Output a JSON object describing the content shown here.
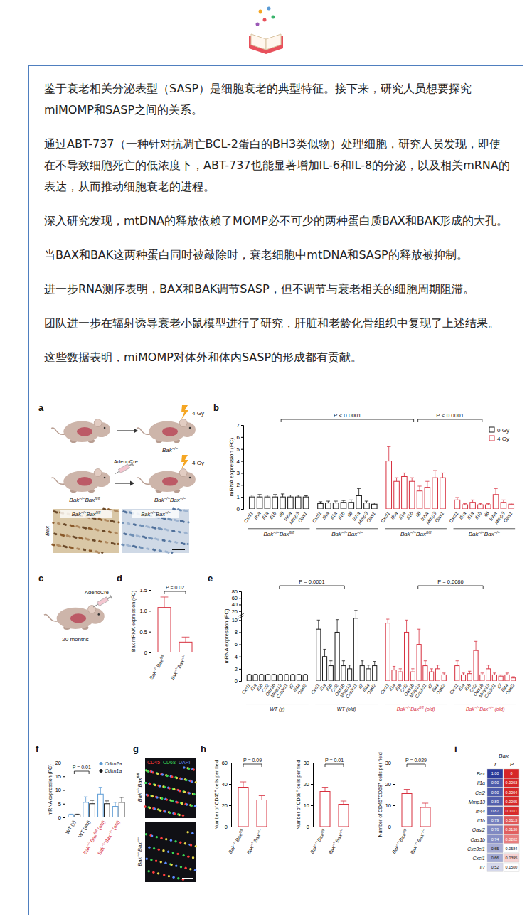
{
  "paragraphs": [
    "鉴于衰老相关分泌表型（SASP）是细胞衰老的典型特征。接下来，研究人员想要探究miMOMP和SASP之间的关系。",
    "通过ABT-737（一种针对抗凋亡BCL-2蛋白的BH3类似物）处理细胞，研究人员发现，即使在不导致细胞死亡的低浓度下，ABT-737也能显著增加IL-6和IL-8的分泌，以及相关mRNA的表达，从而推动细胞衰老的进程。",
    "深入研究发现，mtDNA的释放依赖了MOMP必不可少的两种蛋白质BAX和BAK形成的大孔。",
    "当BAX和BAK这两种蛋白同时被敲除时，衰老细胞中mtDNA和SASP的释放被抑制。",
    "进一步RNA测序表明，BAX和BAK调节SASP，但不调节与衰老相关的细胞周期阻滞。",
    "团队进一步在辐射诱导衰老小鼠模型进行了研究，肝脏和老龄化骨组织中复现了上述结果。",
    "这些数据表明，miMOMP对体外和体内SASP的形成都有贡献。"
  ],
  "diagrams": {
    "a": {
      "panel": "a",
      "dose_top": "4 Gy",
      "genotype_top": "Bak−/−",
      "injection": "AdenoCre",
      "genotype_start": "Bak−/−Baxfl/fl",
      "dose_bottom": "4 Gy",
      "genotype_end": "Bak−/−Bax−/−",
      "stain": "Bax",
      "image_left": "Bak−/−Baxfl/fl",
      "image_right": "Bak−/−Bax−/−"
    },
    "c": {
      "panel": "c",
      "injection": "AdenoCre",
      "age": "20 months"
    },
    "g": {
      "panel": "g",
      "channels": [
        {
          "name": "CD45",
          "color": "#ff3b3b"
        },
        {
          "name": "CD68",
          "color": "#39d353"
        },
        {
          "name": "DAPI",
          "color": "#5b8cff"
        }
      ],
      "rows": [
        "Bak−/−Baxfl/fl",
        "Bak−/−Bax−/−"
      ]
    }
  },
  "chart_data": [
    {
      "panel": "b",
      "type": "bar",
      "y_label": "mRNA expression (FC)",
      "ylim": [
        0,
        7
      ],
      "yticks": [
        0,
        1,
        2,
        3,
        4,
        5,
        6,
        7
      ],
      "categories": [
        "Cxcl1",
        "Ifna",
        "Il1a",
        "Il1b",
        "Il6",
        "Inha",
        "Mmp3",
        "Oas1"
      ],
      "series": [
        {
          "name": "0 Gy",
          "color": "#1a1a1a"
        },
        {
          "name": "4 Gy",
          "color": "#d7303f"
        }
      ],
      "legend": "top-right",
      "groups": [
        {
          "name": "Bak−/−Baxfl/fl",
          "series": 0,
          "values": [
            1.0,
            1.0,
            1.0,
            1.0,
            1.0,
            1.0,
            1.0,
            1.0
          ],
          "errors": [
            0.15,
            0.2,
            0.15,
            0.2,
            0.25,
            0.15,
            0.15,
            0.1
          ]
        },
        {
          "name": "Bak−/−Bax−/−",
          "series": 0,
          "values": [
            0.45,
            0.5,
            0.5,
            0.55,
            0.55,
            1.1,
            0.5,
            0.4
          ],
          "errors": [
            0.15,
            0.15,
            0.15,
            0.15,
            0.2,
            0.6,
            0.15,
            0.1
          ]
        },
        {
          "name": "Bak−/−Baxfl/fl",
          "series": 1,
          "values": [
            4.0,
            2.3,
            2.7,
            2.3,
            1.5,
            1.8,
            2.6,
            2.6
          ],
          "errors": [
            1.2,
            0.3,
            0.3,
            0.3,
            0.4,
            0.5,
            0.6,
            0.4
          ]
        },
        {
          "name": "Bak−/−Bax−/−",
          "series": 1,
          "values": [
            0.75,
            0.35,
            0.55,
            0.35,
            0.35,
            1.2,
            0.55,
            0.4
          ],
          "errors": [
            0.2,
            0.1,
            0.2,
            0.1,
            0.1,
            0.5,
            0.2,
            0.1
          ]
        }
      ],
      "comparisons": [
        {
          "groups": [
            0,
            2
          ],
          "label": "P < 0.0001"
        },
        {
          "groups": [
            2,
            3
          ],
          "label": "P < 0.0001"
        }
      ]
    },
    {
      "panel": "d",
      "type": "bar",
      "y_label": "Bax mRNA expression (FC)",
      "ylim": [
        0,
        1.5
      ],
      "yticks": [
        0,
        0.5,
        {
          "value": 1,
          "label": "1.0"
        },
        1.5
      ],
      "categories": [
        "Bak−/−Baxfl/fl",
        "Bak−/−Bax−/−"
      ],
      "values": [
        1.08,
        0.25
      ],
      "errors": [
        0.25,
        0.12
      ],
      "color": "#d7303f",
      "comparisons": [
        {
          "categories": [
            0,
            1
          ],
          "label": "P = 0.02"
        }
      ]
    },
    {
      "panel": "e",
      "type": "bar",
      "y_label": "mRNA expression (FC)",
      "ylim": [
        0,
        80
      ],
      "y_break": [
        10,
        20
      ],
      "yticks": [
        0,
        2,
        4,
        6,
        8,
        10,
        20,
        40,
        60,
        80
      ],
      "categories": [
        "Cxcl1",
        "Il1a",
        "Il1b",
        "Ccl2",
        "Oas1b",
        "Mmp13",
        "Cxc3cl1",
        "Il7",
        "Ifi44",
        "Oasl2"
      ],
      "groups": [
        {
          "name": "WT (y)",
          "color": "#1a1a1a",
          "values": [
            1.0,
            1.0,
            1.0,
            1.0,
            1.0,
            1.0,
            1.0,
            1.0,
            1.0,
            1.0
          ],
          "errors": [
            0.1,
            0.1,
            0.1,
            0.1,
            0.1,
            0.1,
            0.1,
            0.1,
            0.1,
            0.1
          ]
        },
        {
          "name": "WT (old)",
          "color": "#1a1a1a",
          "values": [
            8.5,
            4.0,
            2.5,
            8.0,
            2.5,
            2.0,
            12,
            2.5,
            2.0,
            2.5
          ],
          "errors": [
            1.5,
            1.2,
            0.8,
            2.5,
            0.8,
            0.6,
            10,
            0.8,
            0.6,
            0.7
          ]
        },
        {
          "name": "Bak−/−Baxfl/fl (old)",
          "color": "#d7303f",
          "values": [
            9.5,
            1.8,
            1.5,
            8.0,
            1.5,
            6.0,
            2.5,
            1.5,
            2.0,
            1.0
          ],
          "errors": [
            1.5,
            0.6,
            0.5,
            2.0,
            0.5,
            2.5,
            0.8,
            0.5,
            0.6,
            0.3
          ]
        },
        {
          "name": "Bak−/−Bax−/− (old)",
          "color": "#d7303f",
          "values": [
            2.5,
            1.0,
            1.2,
            5.0,
            1.0,
            2.0,
            1.0,
            0.8,
            1.0,
            0.5
          ],
          "errors": [
            0.8,
            0.3,
            0.4,
            1.5,
            0.3,
            0.6,
            0.3,
            0.2,
            0.3,
            0.2
          ]
        }
      ],
      "comparisons": [
        {
          "groups": [
            0,
            1
          ],
          "label": "P = 0.0001"
        },
        {
          "groups": [
            2,
            3
          ],
          "label": "P = 0.0086"
        }
      ]
    },
    {
      "panel": "f",
      "type": "bar",
      "y_label": "mRNA expression (FC)",
      "ylim": [
        0,
        20
      ],
      "yticks": [
        0,
        5,
        10,
        15,
        20
      ],
      "categories": [
        "WT (y)",
        "WT (old)",
        "Bak−/−Baxfl/fl (old)",
        "Bak−/−Bax−/− (old)"
      ],
      "label_colors": [
        "#1a1a1a",
        "#1a1a1a",
        "#d7303f",
        "#d7303f"
      ],
      "legend": "top-right",
      "series": [
        {
          "name": "Cdkn2a",
          "color": "#5b9bd5",
          "values": [
            1.0,
            5.5,
            8.5,
            4.0
          ],
          "errors": [
            0.2,
            2.0,
            2.5,
            1.5
          ]
        },
        {
          "name": "Cdkn1a",
          "color": "#1a1a1a",
          "values": [
            1.0,
            5.0,
            5.0,
            5.5
          ],
          "errors": [
            0.2,
            1.2,
            1.0,
            1.8
          ]
        }
      ],
      "comparisons": [
        {
          "categories": [
            0,
            1
          ],
          "label": "P = 0.01"
        }
      ]
    },
    {
      "panel": "h",
      "type": "bar",
      "y_label": "Number of CD45+ cells per field",
      "ylim": [
        0,
        60
      ],
      "yticks": [
        0,
        20,
        40,
        60
      ],
      "categories": [
        "Bak−/−Baxfl/fl",
        "Bak−/−Bax−/−"
      ],
      "values": [
        37,
        25
      ],
      "errors": [
        5,
        4
      ],
      "color": "#d7303f",
      "comparisons": [
        {
          "categories": [
            0,
            1
          ],
          "label": "P = 0.09"
        }
      ]
    },
    {
      "type": "bar",
      "y_label": "Number of CD68+ cells per field",
      "ylim": [
        0,
        30
      ],
      "yticks": [
        0,
        10,
        20,
        30
      ],
      "categories": [
        "Bak−/−Baxfl/fl",
        "Bak−/−Bax−/−"
      ],
      "values": [
        16.5,
        10.5
      ],
      "errors": [
        2,
        1.5
      ],
      "color": "#d7303f",
      "comparisons": [
        {
          "categories": [
            0,
            1
          ],
          "label": "P = 0.01"
        }
      ]
    },
    {
      "type": "bar",
      "y_label": "Number of CD45+CD68+ cells per field",
      "ylim": [
        0,
        30
      ],
      "yticks": [
        0,
        10,
        20,
        30
      ],
      "categories": [
        "Bak−/−Baxfl/fl",
        "Bak−/−Bax−/−"
      ],
      "values": [
        15.5,
        9
      ],
      "errors": [
        2,
        2
      ],
      "color": "#d7303f",
      "comparisons": [
        {
          "categories": [
            0,
            1
          ],
          "label": "P = 0.029"
        }
      ]
    },
    {
      "panel": "i",
      "type": "heatmap",
      "title": "Bax",
      "columns": [
        "r",
        "P"
      ],
      "rows": [
        "Bax",
        "Il1a",
        "Ccl2",
        "Mmp13",
        "Ifi44",
        "Il1b",
        "Oasl2",
        "Oas1b",
        "Cxc3cl1",
        "Cxcl1",
        "Il7"
      ],
      "cells": [
        [
          1.0,
          0
        ],
        [
          0.9,
          0.0003
        ],
        [
          0.9,
          0.0004
        ],
        [
          0.89,
          0.0005
        ],
        [
          0.87,
          0.0011
        ],
        [
          0.79,
          0.0113
        ],
        [
          0.76,
          0.013
        ],
        [
          0.74,
          0.0202
        ],
        [
          0.65,
          0.0584
        ],
        [
          0.66,
          0.0395
        ],
        [
          0.52,
          0.15
        ]
      ],
      "cell_labels": [
        [
          "1.00",
          "0"
        ],
        [
          "0.90",
          "0.0003"
        ],
        [
          "0.90",
          "0.0004"
        ],
        [
          "0.89",
          "0.0005"
        ],
        [
          "0.87",
          "0.0011"
        ],
        [
          "0.79",
          "0.0113"
        ],
        [
          "0.76",
          "0.0130"
        ],
        [
          "0.74",
          "0.0202"
        ],
        [
          "0.65",
          "0.0584"
        ],
        [
          "0.66",
          "0.0395"
        ],
        [
          "0.52",
          "0.1500"
        ]
      ],
      "color_range": [
        [
          0.4,
          1
        ],
        [
          0.05,
          0
        ]
      ],
      "colors": [
        "#2b3a99",
        "#d62728"
      ]
    }
  ]
}
